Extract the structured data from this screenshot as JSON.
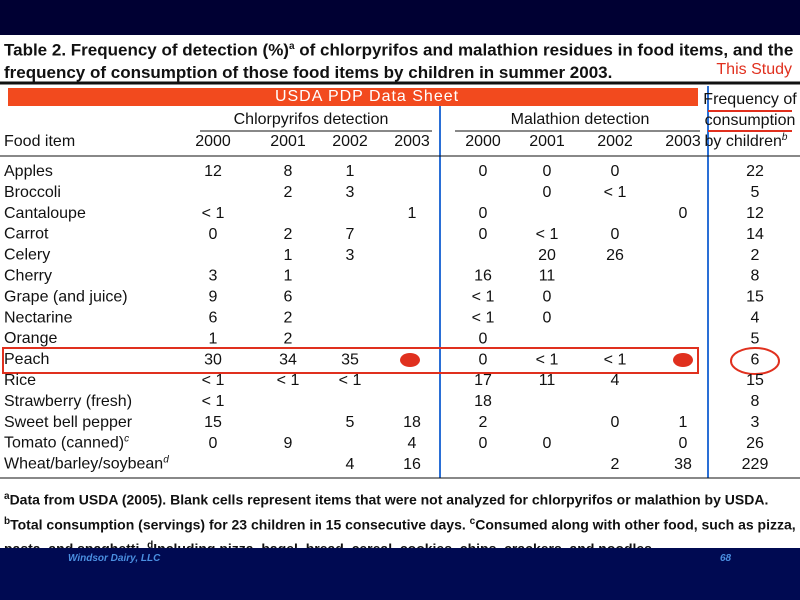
{
  "header": {
    "label": "Table 2.",
    "title_a": "Frequency of detection (%)",
    "title_sup": "a",
    "title_b": "of chlorpyrifos and malathion residues in food items, and the frequency of consumption of those food items by children in summer 2003."
  },
  "annotations": {
    "this_study": "This Study",
    "banner": "USDA PDP Data Sheet"
  },
  "table": {
    "first_header": "Food item",
    "groups": [
      "Chlorpyrifos detection",
      "Malathion detection"
    ],
    "years": [
      "2000",
      "2001",
      "2002",
      "2003"
    ],
    "last_header": [
      "Frequency of",
      "consumption",
      "by children"
    ],
    "last_header_sup": "b",
    "rows": [
      {
        "food": "Apples",
        "chlorpyrifos": [
          12,
          8,
          1,
          null
        ],
        "malathion": [
          0,
          0,
          0,
          null
        ],
        "frequency": 22
      },
      {
        "food": "Broccoli",
        "chlorpyrifos": [
          null,
          2,
          3,
          null
        ],
        "malathion": [
          null,
          0,
          "< 1",
          null
        ],
        "frequency": 5
      },
      {
        "food": "Cantaloupe",
        "chlorpyrifos": [
          "< 1",
          null,
          null,
          1
        ],
        "malathion": [
          0,
          null,
          null,
          0
        ],
        "frequency": 12
      },
      {
        "food": "Carrot",
        "chlorpyrifos": [
          0,
          2,
          7,
          null
        ],
        "malathion": [
          0,
          "< 1",
          0,
          null
        ],
        "frequency": 14
      },
      {
        "food": "Celery",
        "chlorpyrifos": [
          null,
          1,
          3,
          null
        ],
        "malathion": [
          null,
          20,
          26,
          null
        ],
        "frequency": 2
      },
      {
        "food": "Cherry",
        "chlorpyrifos": [
          3,
          1,
          null,
          null
        ],
        "malathion": [
          16,
          11,
          null,
          null
        ],
        "frequency": 8
      },
      {
        "food": "Grape (and juice)",
        "chlorpyrifos": [
          9,
          6,
          null,
          null
        ],
        "malathion": [
          "< 1",
          0,
          null,
          null
        ],
        "frequency": 15
      },
      {
        "food": "Nectarine",
        "chlorpyrifos": [
          6,
          2,
          null,
          null
        ],
        "malathion": [
          "< 1",
          0,
          null,
          null
        ],
        "frequency": 4
      },
      {
        "food": "Orange",
        "chlorpyrifos": [
          1,
          2,
          null,
          null
        ],
        "malathion": [
          0,
          null,
          null,
          null
        ],
        "frequency": 5
      },
      {
        "food": "Peach",
        "chlorpyrifos": [
          30,
          34,
          35,
          null
        ],
        "malathion": [
          0,
          "< 1",
          "< 1",
          null
        ],
        "frequency": 6
      },
      {
        "food": "Rice",
        "chlorpyrifos": [
          "< 1",
          "< 1",
          "< 1",
          null
        ],
        "malathion": [
          17,
          11,
          4,
          null
        ],
        "frequency": 15
      },
      {
        "food": "Strawberry (fresh)",
        "chlorpyrifos": [
          "< 1",
          null,
          null,
          null
        ],
        "malathion": [
          18,
          null,
          null,
          null
        ],
        "frequency": 8
      },
      {
        "food": "Sweet bell pepper",
        "chlorpyrifos": [
          15,
          null,
          5,
          18
        ],
        "malathion": [
          2,
          null,
          0,
          1
        ],
        "frequency": 3
      },
      {
        "food": "Tomato (canned)",
        "note": "c",
        "chlorpyrifos": [
          0,
          9,
          null,
          4
        ],
        "malathion": [
          0,
          0,
          null,
          0
        ],
        "frequency": 26
      },
      {
        "food": "Wheat/barley/soybean",
        "note": "d",
        "chlorpyrifos": [
          null,
          null,
          4,
          16
        ],
        "malathion": [
          null,
          null,
          2,
          38
        ],
        "frequency": 229
      }
    ]
  },
  "footnotes": [
    {
      "marker": "a",
      "text": "Data from USDA (2005). Blank cells represent items that were not analyzed for chlorpyrifos or malathion by USDA."
    },
    {
      "marker": "b",
      "text": "Total consumption (servings) for 23 children in 15 consecutive days."
    },
    {
      "marker": "c",
      "text": "Consumed along with other food, such as pizza, pasta, and spaghetti."
    },
    {
      "marker": "d",
      "text": "Including pizza, bagel, bread, cereal, cookies, chips, crackers, and noodles."
    }
  ],
  "footer": {
    "company": "Windsor Dairy, LLC",
    "page": "68"
  }
}
